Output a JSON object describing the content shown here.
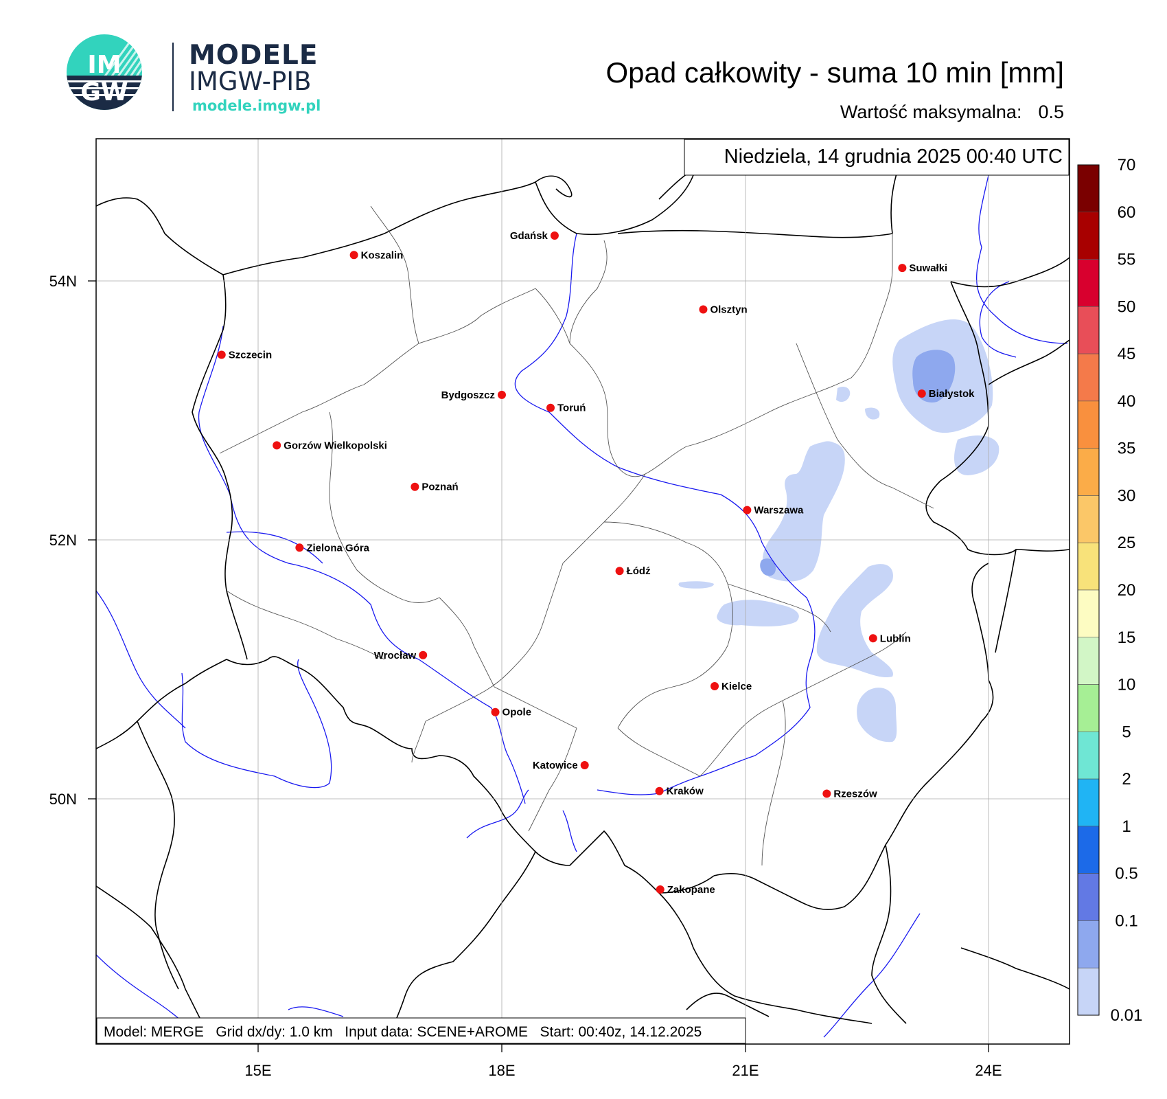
{
  "logo": {
    "badge_top": "IM",
    "badge_bottom": "GW",
    "line1": "MODELE",
    "line2": "IMGW-PIB",
    "url": "modele.imgw.pl",
    "colors": {
      "teal": "#32d3bd",
      "navy": "#1b2b45"
    }
  },
  "header": {
    "title": "Opad całkowity - suma 10 min [mm]",
    "max_label": "Wartość maksymalna:",
    "max_value": "0.5"
  },
  "map": {
    "date_label": "Niedziela, 14 grudnia 2025 00:40 UTC",
    "footer": "Model: MERGE   Grid dx/dy: 1.0 km   Input data: SCENE+AROME   Start: 00:40z, 14.12.2025",
    "lon_labels": [
      "15E",
      "18E",
      "21E",
      "24E"
    ],
    "lat_labels": [
      "54N",
      "52N",
      "50N"
    ],
    "lon_range": [
      13.0,
      25.0
    ],
    "lat_range": [
      48.1,
      55.1
    ],
    "cities": [
      {
        "name": "Gdańsk",
        "lon": 18.65,
        "lat": 54.35,
        "anchor": "left"
      },
      {
        "name": "Koszalin",
        "lon": 16.18,
        "lat": 54.2,
        "anchor": "right"
      },
      {
        "name": "Suwałki",
        "lon": 22.93,
        "lat": 54.1,
        "anchor": "right"
      },
      {
        "name": "Olsztyn",
        "lon": 20.48,
        "lat": 53.78,
        "anchor": "right"
      },
      {
        "name": "Szczecin",
        "lon": 14.55,
        "lat": 53.43,
        "anchor": "right"
      },
      {
        "name": "Białystok",
        "lon": 23.17,
        "lat": 53.13,
        "anchor": "right"
      },
      {
        "name": "Bydgoszcz",
        "lon": 18.0,
        "lat": 53.12,
        "anchor": "left"
      },
      {
        "name": "Toruń",
        "lon": 18.6,
        "lat": 53.02,
        "anchor": "right"
      },
      {
        "name": "Gorzów Wielkopolski",
        "lon": 15.23,
        "lat": 52.73,
        "anchor": "right"
      },
      {
        "name": "Poznań",
        "lon": 16.93,
        "lat": 52.41,
        "anchor": "right"
      },
      {
        "name": "Warszawa",
        "lon": 21.02,
        "lat": 52.23,
        "anchor": "right"
      },
      {
        "name": "Zielona Góra",
        "lon": 15.51,
        "lat": 51.94,
        "anchor": "right"
      },
      {
        "name": "Łódź",
        "lon": 19.45,
        "lat": 51.76,
        "anchor": "right"
      },
      {
        "name": "Lublin",
        "lon": 22.57,
        "lat": 51.24,
        "anchor": "right"
      },
      {
        "name": "Wrocław",
        "lon": 17.03,
        "lat": 51.11,
        "anchor": "left"
      },
      {
        "name": "Kielce",
        "lon": 20.62,
        "lat": 50.87,
        "anchor": "right"
      },
      {
        "name": "Opole",
        "lon": 17.92,
        "lat": 50.67,
        "anchor": "right"
      },
      {
        "name": "Katowice",
        "lon": 19.02,
        "lat": 50.26,
        "anchor": "left"
      },
      {
        "name": "Kraków",
        "lon": 19.94,
        "lat": 50.06,
        "anchor": "right"
      },
      {
        "name": "Rzeszów",
        "lon": 22.0,
        "lat": 50.04,
        "anchor": "right"
      },
      {
        "name": "Zakopane",
        "lon": 19.95,
        "lat": 49.3,
        "anchor": "right"
      }
    ]
  },
  "legend": {
    "labels": [
      "70",
      "60",
      "55",
      "50",
      "45",
      "40",
      "35",
      "30",
      "25",
      "20",
      "15",
      "10",
      "5",
      "2",
      "1",
      "0.5",
      "0.1",
      "0.01"
    ],
    "colors": [
      "#7a0000",
      "#a80000",
      "#d8002e",
      "#e84e58",
      "#f47a4a",
      "#f9903e",
      "#fbac48",
      "#fbc768",
      "#f8e27a",
      "#fdfcc2",
      "#d2f6c6",
      "#a6ef95",
      "#6fe6d4",
      "#20b4f4",
      "#1c6ae8",
      "#6279e4",
      "#8ea8ee",
      "#c7d5f7"
    ]
  },
  "precip_colors": {
    "light": "#c7d5f7",
    "medium": "#8ea8ee"
  }
}
